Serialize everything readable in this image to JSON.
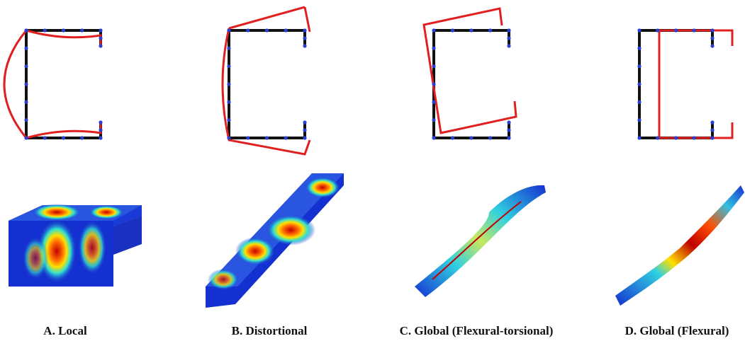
{
  "panels": [
    {
      "label": "A. Local"
    },
    {
      "label": "B. Distortional"
    },
    {
      "label": "C. Global (Flexural-torsional)"
    },
    {
      "label": "D. Global (Flexural)"
    }
  ]
}
